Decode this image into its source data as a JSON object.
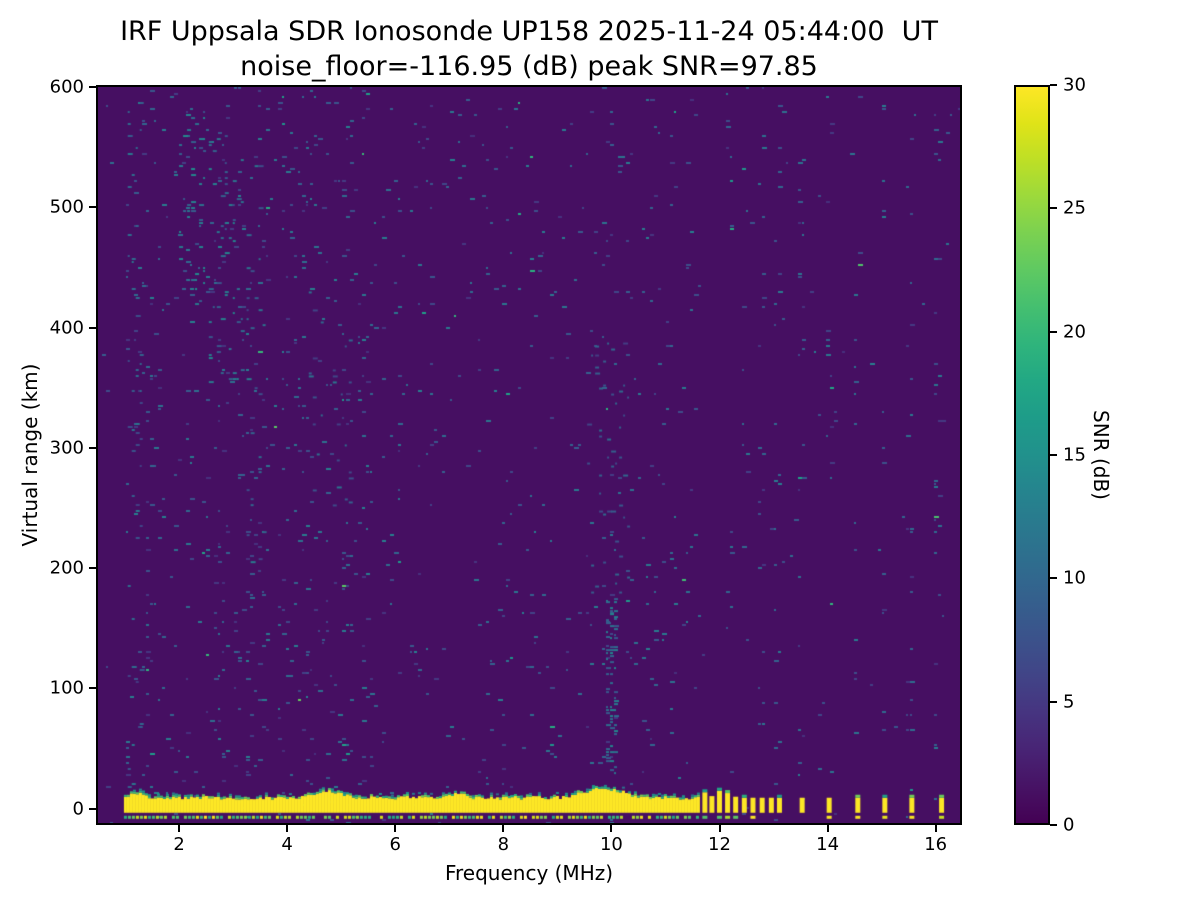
{
  "chart_data": {
    "type": "heatmap",
    "title": "IRF Uppsala SDR Ionosonde UP158 2025-11-24 05:44:00  UT",
    "subtitle": "noise_floor=-116.95 (dB) peak SNR=97.85",
    "xlabel": "Frequency (MHz)",
    "ylabel": "Virtual range (km)",
    "xlim": [
      0.5,
      16.45
    ],
    "ylim": [
      -12,
      600
    ],
    "xticks": [
      2,
      4,
      6,
      8,
      10,
      12,
      14,
      16
    ],
    "yticks": [
      0,
      100,
      200,
      300,
      400,
      500,
      600
    ],
    "grid": false,
    "noise_floor_db": -116.95,
    "peak_snr_db": 97.85,
    "colorbar": {
      "label": "SNR (dB)",
      "min": 0,
      "max": 30,
      "ticks": [
        0,
        5,
        10,
        15,
        20,
        25,
        30
      ],
      "position": "right"
    },
    "colormap": "viridis",
    "colormap_stops": [
      "#440154",
      "#471365",
      "#482475",
      "#463480",
      "#414487",
      "#3b528b",
      "#355f8d",
      "#2f6c8e",
      "#2a788e",
      "#25848e",
      "#21918c",
      "#1e9c89",
      "#22a884",
      "#2fb47c",
      "#44bf70",
      "#5ec962",
      "#7ad151",
      "#9bd93c",
      "#bddf26",
      "#dfe318",
      "#fde725"
    ],
    "features": {
      "seed": 20251124,
      "background_snr": 1.2,
      "speckle": {
        "fmin": 1.0,
        "p_edge": 0.004,
        "f_split1": 5.6,
        "p_low": 0.028,
        "f_split2": 11.6,
        "p_mid": 0.015,
        "p_high": 0.0035,
        "p_streak": 0.045,
        "v_min": 4,
        "v_max": 13
      },
      "streaks": [
        1.35,
        1.75,
        2.1,
        2.65,
        3.35,
        4.5,
        5.05,
        9.95,
        12.15,
        12.45,
        12.75,
        13.05,
        13.5,
        14.0,
        14.5,
        15.0,
        15.5,
        16.0
      ],
      "clusters": [
        {
          "f": [
            2.0,
            2.5
          ],
          "r": [
            420,
            580
          ],
          "d": 0.12,
          "v": [
            7,
            15
          ]
        },
        {
          "f": [
            2.55,
            3.2
          ],
          "r": [
            350,
            565
          ],
          "d": 0.08,
          "v": [
            7,
            14
          ]
        },
        {
          "f": [
            3.25,
            3.55
          ],
          "r": [
            150,
            540
          ],
          "d": 0.05,
          "v": [
            6,
            13
          ]
        },
        {
          "f": [
            1.05,
            1.3
          ],
          "r": [
            0,
            595
          ],
          "d": 0.05,
          "v": [
            5,
            12
          ]
        },
        {
          "f": [
            4.4,
            5.15
          ],
          "r": [
            250,
            430
          ],
          "d": 0.035,
          "v": [
            5,
            12
          ]
        },
        {
          "f": [
            9.9,
            10.1
          ],
          "r": [
            15,
            175
          ],
          "d": 0.3,
          "v": [
            8,
            14
          ]
        },
        {
          "f": [
            9.55,
            10.35
          ],
          "r": [
            180,
            390
          ],
          "d": 0.04,
          "v": [
            5,
            11
          ]
        }
      ],
      "ground_band": {
        "f": [
          0.98,
          11.62
        ],
        "r_top": 9,
        "r_bottom": -3.5,
        "bumps": [
          {
            "f": [
              4.3,
              5.2
            ],
            "h": 5
          },
          {
            "f": [
              9.1,
              10.5
            ],
            "h": 7
          },
          {
            "f": [
              6.8,
              7.4
            ],
            "h": 3
          },
          {
            "f": [
              0.98,
              1.4
            ],
            "h": 4
          }
        ]
      },
      "bottom_line": {
        "f": [
          0.98,
          11.62
        ],
        "r": [
          -8.5,
          -6
        ],
        "p": 0.8
      },
      "pulses": {
        "freqs": [
          11.72,
          11.85,
          11.99,
          12.14,
          12.29,
          12.45,
          12.61,
          12.78,
          12.95,
          13.1,
          13.52,
          14.02,
          14.55,
          15.05,
          15.55,
          16.1
        ],
        "r": [
          -3.5,
          9
        ],
        "tall_below": 12.4,
        "tall_extra": 6
      }
    }
  }
}
